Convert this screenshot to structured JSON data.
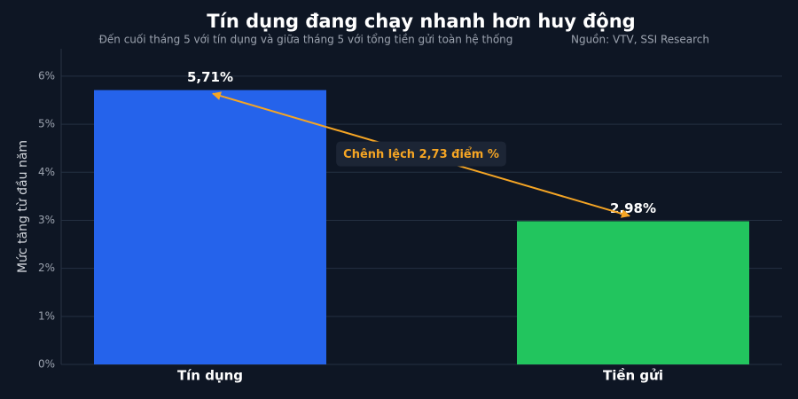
{
  "chart_data": {
    "type": "bar",
    "title": "Tín dụng đang chạy nhanh hơn huy động",
    "subtitle": "Đến cuối tháng 5 với tín dụng và giữa tháng 5 với tổng tiền gửi toàn hệ thống",
    "source": "Nguồn: VTV, SSI Research",
    "y_label": "Mức tăng từ đầu năm",
    "annotation": "Chênh lệch 2,73 điểm %",
    "categories": [
      "Tín dụng",
      "Tiền gửi"
    ],
    "values": [
      5.71,
      2.98
    ],
    "value_labels": [
      "5,71%",
      "2,98%"
    ],
    "colors": [
      "#2563eb",
      "#22c55e"
    ],
    "annotation_color": "#f5a524",
    "ylim": [
      0,
      6.57
    ],
    "yticks": [
      {
        "value": 0,
        "label": "0%"
      },
      {
        "value": 1,
        "label": "1%"
      },
      {
        "value": 2,
        "label": "2%"
      },
      {
        "value": 3,
        "label": "3%"
      },
      {
        "value": 4,
        "label": "4%"
      },
      {
        "value": 5,
        "label": "5%"
      },
      {
        "value": 6,
        "label": "6%"
      }
    ],
    "grid": true
  }
}
